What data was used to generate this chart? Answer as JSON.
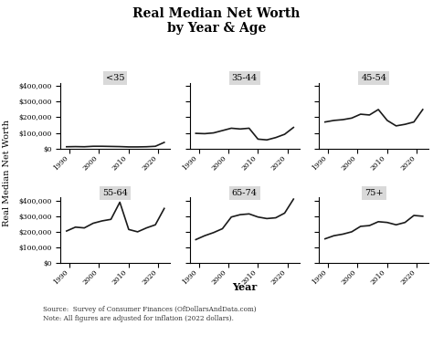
{
  "title": "Real Median Net Worth\nby Year & Age",
  "ylabel": "Real Median Net Worth",
  "xlabel": "Year",
  "source_text": "Source:  Survey of Consumer Finances (OfDollarsAndData.com)\nNote: All figures are adjusted for inflation (2022 dollars).",
  "years": [
    1989,
    1992,
    1995,
    1998,
    2001,
    2004,
    2007,
    2010,
    2013,
    2016,
    2019,
    2022
  ],
  "age_groups": [
    "<35",
    "35-44",
    "45-54",
    "55-64",
    "65-74",
    "75+"
  ],
  "data": {
    "<35": [
      11000,
      12000,
      11000,
      14000,
      14000,
      13000,
      12000,
      10000,
      10000,
      11000,
      14000,
      39000
    ],
    "35-44": [
      97000,
      95000,
      100000,
      115000,
      130000,
      125000,
      130000,
      60000,
      55000,
      70000,
      91000,
      135000
    ],
    "45-54": [
      170000,
      180000,
      185000,
      195000,
      220000,
      215000,
      250000,
      180000,
      145000,
      155000,
      170000,
      250000
    ],
    "55-64": [
      205000,
      230000,
      225000,
      255000,
      270000,
      280000,
      390000,
      215000,
      200000,
      225000,
      245000,
      350000
    ],
    "65-74": [
      150000,
      175000,
      195000,
      220000,
      295000,
      310000,
      315000,
      295000,
      285000,
      290000,
      320000,
      410000
    ],
    "75+": [
      155000,
      175000,
      185000,
      200000,
      235000,
      240000,
      265000,
      260000,
      245000,
      260000,
      305000,
      300000
    ]
  },
  "ylim": [
    0,
    420000
  ],
  "yticks": [
    0,
    100000,
    200000,
    300000,
    400000
  ],
  "background_color": "#ffffff",
  "subplot_header_color": "#d9d9d9",
  "line_color": "#1a1a1a",
  "line_width": 1.2,
  "title_fontsize": 10,
  "tick_fontsize": 5.5,
  "header_fontsize": 7,
  "ylabel_fontsize": 7,
  "xlabel_fontsize": 8,
  "source_fontsize": 5.2
}
